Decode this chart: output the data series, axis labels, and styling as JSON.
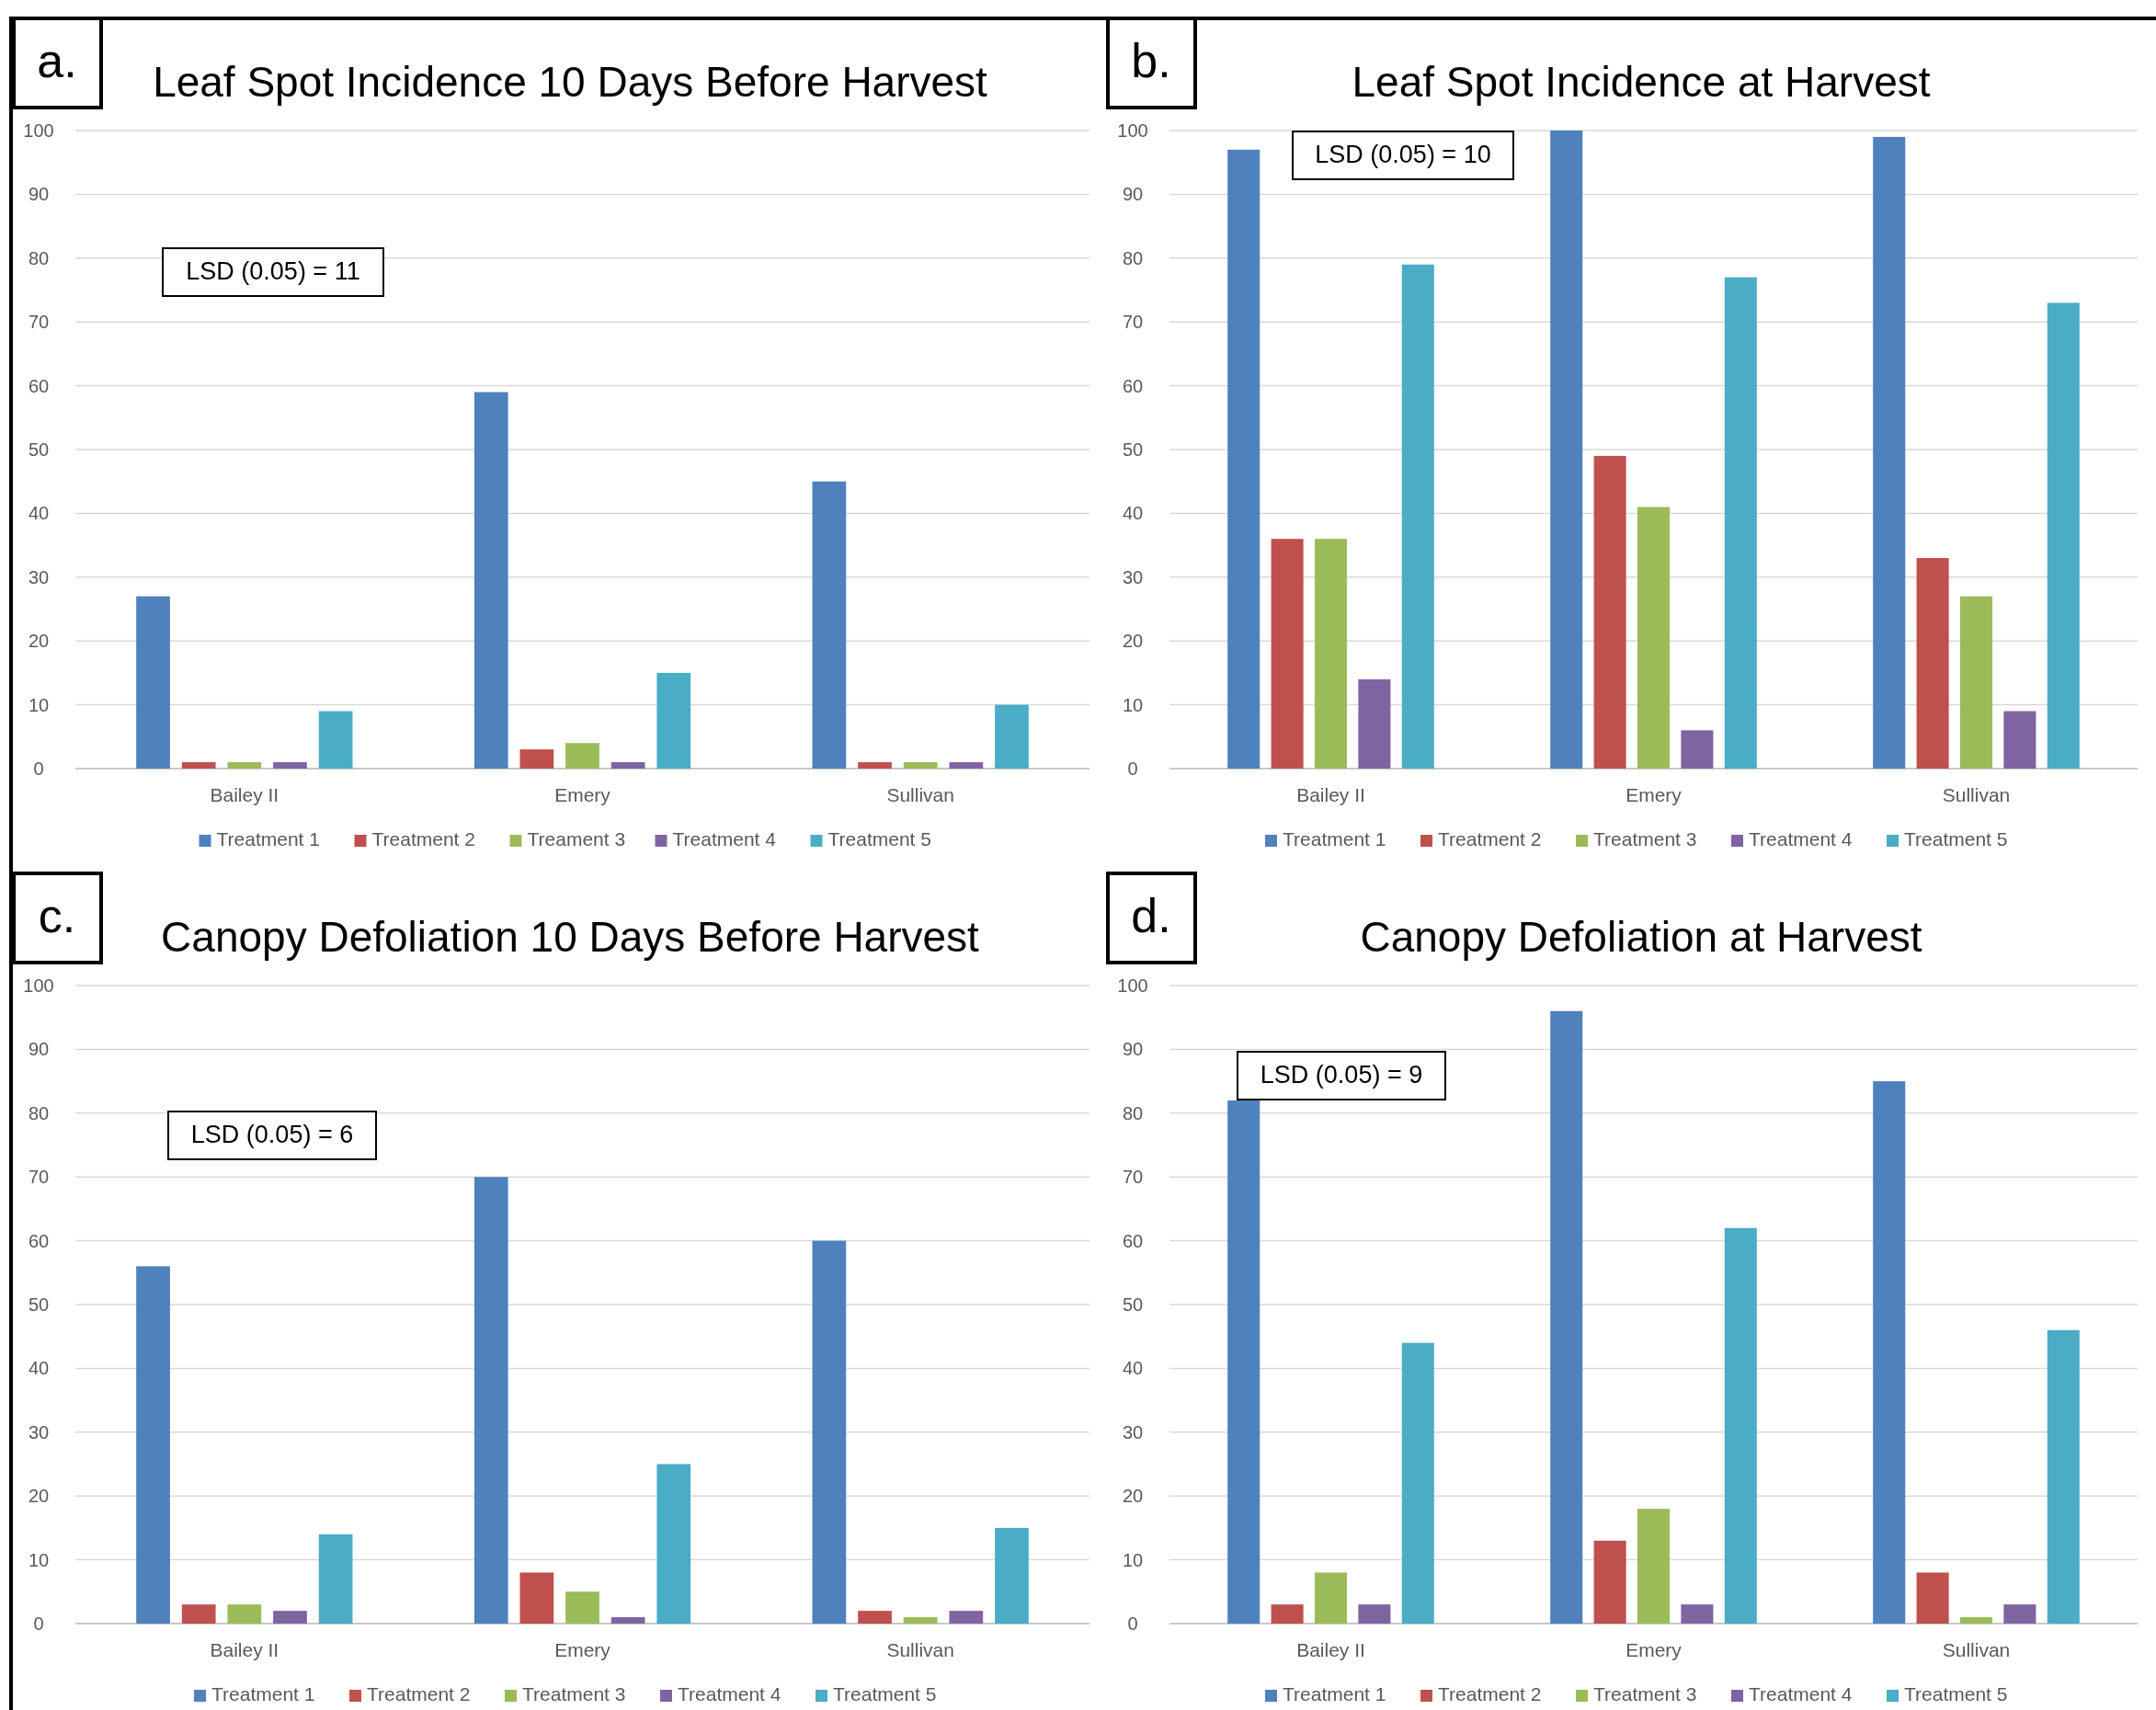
{
  "chart_data": [
    {
      "type": "bar",
      "title": "Leaf Spot Incidence 10 Days Before Harvest",
      "annotations": [
        "a.",
        "LSD (0.05) = 11"
      ],
      "categories": [
        "Bailey II",
        "Emery",
        "Sullivan"
      ],
      "ylim": [
        0,
        100
      ],
      "yticks": [
        0,
        10,
        20,
        30,
        40,
        50,
        60,
        70,
        80,
        90,
        100
      ],
      "grid": "y",
      "legend": "bottom",
      "series": [
        {
          "name": "Treatment 1",
          "color": "#4f81bd",
          "values": [
            27,
            59,
            45
          ]
        },
        {
          "name": "Treatment 2",
          "color": "#c0504d",
          "values": [
            1,
            3,
            1
          ]
        },
        {
          "name": "Treament 3",
          "color": "#9bbb59",
          "values": [
            1,
            4,
            1
          ]
        },
        {
          "name": "Treatment 4",
          "color": "#8064a2",
          "values": [
            1,
            1,
            1
          ]
        },
        {
          "name": "Treatment 5",
          "color": "#4bacc6",
          "values": [
            9,
            15,
            10
          ]
        }
      ]
    },
    {
      "type": "bar",
      "title": "Leaf Spot Incidence at Harvest",
      "annotations": [
        "b.",
        "LSD (0.05) = 10"
      ],
      "categories": [
        "Bailey II",
        "Emery",
        "Sullivan"
      ],
      "ylim": [
        0,
        100
      ],
      "yticks": [
        0,
        10,
        20,
        30,
        40,
        50,
        60,
        70,
        80,
        90,
        100
      ],
      "grid": "y",
      "legend": "bottom",
      "series": [
        {
          "name": "Treatment 1",
          "color": "#4f81bd",
          "values": [
            97,
            100,
            99
          ]
        },
        {
          "name": "Treatment 2",
          "color": "#c0504d",
          "values": [
            36,
            49,
            33
          ]
        },
        {
          "name": "Treatment 3",
          "color": "#9bbb59",
          "values": [
            36,
            41,
            27
          ]
        },
        {
          "name": "Treatment 4",
          "color": "#8064a2",
          "values": [
            14,
            6,
            9
          ]
        },
        {
          "name": "Treatment 5",
          "color": "#4bacc6",
          "values": [
            79,
            77,
            73
          ]
        }
      ]
    },
    {
      "type": "bar",
      "title": "Canopy Defoliation 10 Days Before Harvest",
      "annotations": [
        "c.",
        "LSD (0.05) = 6"
      ],
      "categories": [
        "Bailey II",
        "Emery",
        "Sullivan"
      ],
      "ylim": [
        0,
        100
      ],
      "yticks": [
        0,
        10,
        20,
        30,
        40,
        50,
        60,
        70,
        80,
        90,
        100
      ],
      "grid": "y",
      "legend": "bottom",
      "series": [
        {
          "name": "Treatment 1",
          "color": "#4f81bd",
          "values": [
            56,
            70,
            60
          ]
        },
        {
          "name": "Treatment 2",
          "color": "#c0504d",
          "values": [
            3,
            8,
            2
          ]
        },
        {
          "name": "Treatment 3",
          "color": "#9bbb59",
          "values": [
            3,
            5,
            1
          ]
        },
        {
          "name": "Treatment 4",
          "color": "#8064a2",
          "values": [
            2,
            1,
            2
          ]
        },
        {
          "name": "Treatment 5",
          "color": "#4bacc6",
          "values": [
            14,
            25,
            15
          ]
        }
      ]
    },
    {
      "type": "bar",
      "title": "Canopy Defoliation at Harvest",
      "annotations": [
        "d.",
        "LSD (0.05) = 9"
      ],
      "categories": [
        "Bailey II",
        "Emery",
        "Sullivan"
      ],
      "ylim": [
        0,
        100
      ],
      "yticks": [
        0,
        10,
        20,
        30,
        40,
        50,
        60,
        70,
        80,
        90,
        100
      ],
      "grid": "y",
      "legend": "bottom",
      "series": [
        {
          "name": "Treatment 1",
          "color": "#4f81bd",
          "values": [
            82,
            96,
            85
          ]
        },
        {
          "name": "Treatment 2",
          "color": "#c0504d",
          "values": [
            3,
            13,
            8
          ]
        },
        {
          "name": "Treatment 3",
          "color": "#9bbb59",
          "values": [
            8,
            18,
            1
          ]
        },
        {
          "name": "Treatment 4",
          "color": "#8064a2",
          "values": [
            3,
            3,
            3
          ]
        },
        {
          "name": "Treatment 5",
          "color": "#4bacc6",
          "values": [
            44,
            62,
            46
          ]
        }
      ]
    }
  ]
}
